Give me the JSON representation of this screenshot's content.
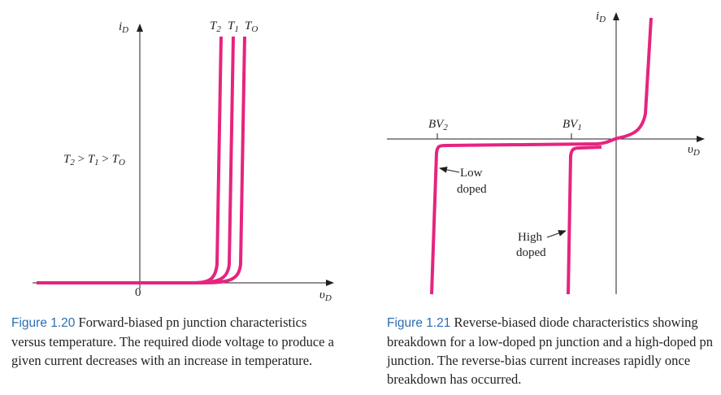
{
  "figure_left": {
    "y_axis": {
      "symbol": "i",
      "sub": "D"
    },
    "x_axis": {
      "symbol": "υ",
      "sub": "D"
    },
    "origin_label": "0",
    "curve_labels": [
      {
        "symbol": "T",
        "sub": "2"
      },
      {
        "symbol": "T",
        "sub": "1"
      },
      {
        "symbol": "T",
        "sub": "O"
      }
    ],
    "relation": {
      "t2": "T",
      "t2_sub": "2",
      "gt1": " > ",
      "t1": "T",
      "t1_sub": "1",
      "gt2": " > ",
      "t0": "T",
      "t0_sub": "O"
    },
    "caption": {
      "number": "Figure 1.20",
      "text": " Forward-biased pn junction characteristics versus temperature. The required diode voltage to produce a given current decreases with an increase in temperature."
    }
  },
  "figure_right": {
    "y_axis": {
      "symbol": "i",
      "sub": "D"
    },
    "x_axis": {
      "symbol": "υ",
      "sub": "D"
    },
    "bv2": {
      "symbol": "BV",
      "sub": "2"
    },
    "bv1": {
      "symbol": "BV",
      "sub": "1"
    },
    "low_doped": [
      "Low",
      "doped"
    ],
    "high_doped": [
      "High",
      "doped"
    ],
    "caption": {
      "number": "Figure 1.21",
      "text": " Reverse-biased diode characteristics showing breakdown for a low-doped pn junction and a high-doped pn junction. The reverse-bias current increases rapidly once breakdown has occurred."
    }
  },
  "colors": {
    "curve": "#e6247f",
    "axis": "#231f20",
    "caption_number": "#2a6fb0"
  }
}
